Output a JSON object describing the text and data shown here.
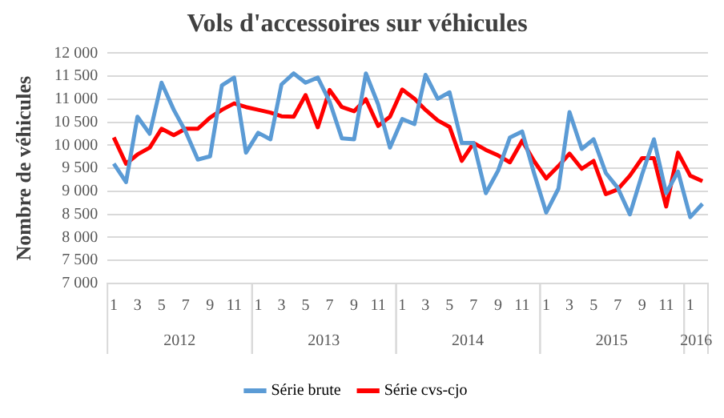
{
  "chart_data": {
    "type": "line",
    "title": "Vols d'accessoires sur véhicules",
    "ylabel": "Nombre de véhicules",
    "x": [
      "2012-01",
      "2012-02",
      "2012-03",
      "2012-04",
      "2012-05",
      "2012-06",
      "2012-07",
      "2012-08",
      "2012-09",
      "2012-10",
      "2012-11",
      "2012-12",
      "2013-01",
      "2013-02",
      "2013-03",
      "2013-04",
      "2013-05",
      "2013-06",
      "2013-07",
      "2013-08",
      "2013-09",
      "2013-10",
      "2013-11",
      "2013-12",
      "2014-01",
      "2014-02",
      "2014-03",
      "2014-04",
      "2014-05",
      "2014-06",
      "2014-07",
      "2014-08",
      "2014-09",
      "2014-10",
      "2014-11",
      "2014-12",
      "2015-01",
      "2015-02",
      "2015-03",
      "2015-04",
      "2015-05",
      "2015-06",
      "2015-07",
      "2015-08",
      "2015-09",
      "2015-10",
      "2015-11",
      "2015-12",
      "2016-01",
      "2016-02"
    ],
    "xticks": [
      {
        "value": "2012-01",
        "label": "1"
      },
      {
        "value": "2012-03",
        "label": "3"
      },
      {
        "value": "2012-05",
        "label": "5"
      },
      {
        "value": "2012-07",
        "label": "7"
      },
      {
        "value": "2012-09",
        "label": "9"
      },
      {
        "value": "2012-11",
        "label": "11"
      },
      {
        "value": "2013-01",
        "label": "1"
      },
      {
        "value": "2013-03",
        "label": "3"
      },
      {
        "value": "2013-05",
        "label": "5"
      },
      {
        "value": "2013-07",
        "label": "7"
      },
      {
        "value": "2013-09",
        "label": "9"
      },
      {
        "value": "2013-11",
        "label": "11"
      },
      {
        "value": "2014-01",
        "label": "1"
      },
      {
        "value": "2014-03",
        "label": "3"
      },
      {
        "value": "2014-05",
        "label": "5"
      },
      {
        "value": "2014-07",
        "label": "7"
      },
      {
        "value": "2014-09",
        "label": "9"
      },
      {
        "value": "2014-11",
        "label": "11"
      },
      {
        "value": "2015-01",
        "label": "1"
      },
      {
        "value": "2015-03",
        "label": "3"
      },
      {
        "value": "2015-05",
        "label": "5"
      },
      {
        "value": "2015-07",
        "label": "7"
      },
      {
        "value": "2015-09",
        "label": "9"
      },
      {
        "value": "2015-11",
        "label": "11"
      },
      {
        "value": "2016-01",
        "label": "1"
      }
    ],
    "xlim": [
      "2011-12-16",
      "2016-02-15"
    ],
    "x2ticks": [
      {
        "value": "2012-06-16",
        "label": "2012"
      },
      {
        "value": "2013-06-16",
        "label": "2013"
      },
      {
        "value": "2014-06-16",
        "label": "2014"
      },
      {
        "value": "2015-06-16",
        "label": "2015"
      },
      {
        "value": "2016-01-16",
        "label": "2016"
      }
    ],
    "x2lim": [
      "2011-12-16",
      "2016-02-15"
    ],
    "series": [
      {
        "name": "Série brute",
        "color": "#5b9bd5",
        "values": [
          9600,
          9200,
          10620,
          10250,
          11360,
          10770,
          10300,
          9690,
          9760,
          11300,
          11470,
          9840,
          10270,
          10130,
          11320,
          11560,
          11360,
          11470,
          10950,
          10150,
          10130,
          11560,
          10890,
          9950,
          10570,
          10460,
          11530,
          11010,
          11150,
          10050,
          10050,
          8960,
          9450,
          10170,
          10300,
          9400,
          8540,
          9060,
          10720,
          9920,
          10130,
          9400,
          9080,
          8500,
          9370,
          10130,
          8960,
          9430,
          8440,
          8730
        ]
      },
      {
        "name": "Série cvs-cjo",
        "color": "#ff0000",
        "values": [
          10170,
          9600,
          9800,
          9950,
          10360,
          10220,
          10360,
          10360,
          10600,
          10770,
          10910,
          10830,
          10770,
          10710,
          10630,
          10620,
          11090,
          10390,
          11200,
          10830,
          10740,
          11000,
          10420,
          10620,
          11210,
          11010,
          10770,
          10540,
          10400,
          9660,
          10050,
          9900,
          9780,
          9630,
          10100,
          9660,
          9280,
          9550,
          9820,
          9490,
          9660,
          8940,
          9040,
          9340,
          9720,
          9720,
          8670,
          9840,
          9340,
          9220
        ]
      }
    ],
    "ylim": [
      7000,
      12000
    ],
    "yticks": [
      7000,
      7500,
      8000,
      8500,
      9000,
      9500,
      10000,
      10500,
      11000,
      11500,
      12000
    ],
    "grid": "y",
    "legend": "bottom",
    "marker": "none",
    "line_style": "solid"
  }
}
